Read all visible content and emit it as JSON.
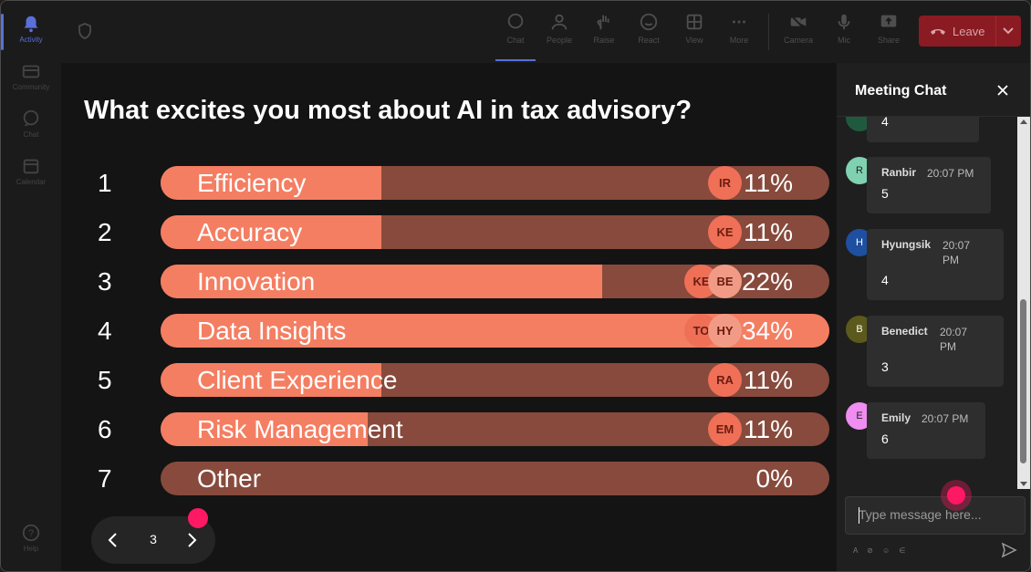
{
  "rail": {
    "items": [
      {
        "label": "Activity",
        "icon": "bell-icon",
        "active": true
      },
      {
        "label": "Community",
        "icon": "community-icon",
        "active": false
      },
      {
        "label": "Chat",
        "icon": "chat-icon",
        "active": false
      },
      {
        "label": "Calendar",
        "icon": "calendar-icon",
        "active": false
      }
    ],
    "help": "Help"
  },
  "toolbar": {
    "buttons": [
      {
        "label": "Chat",
        "icon": "chat-icon",
        "active": true
      },
      {
        "label": "People",
        "icon": "people-icon",
        "active": false
      },
      {
        "label": "Raise",
        "icon": "raise-hand-icon",
        "active": false
      },
      {
        "label": "React",
        "icon": "react-icon",
        "active": false
      },
      {
        "label": "View",
        "icon": "view-grid-icon",
        "active": false
      },
      {
        "label": "More",
        "icon": "more-icon",
        "active": false
      },
      {
        "label": "Camera",
        "icon": "camera-off-icon",
        "active": false
      },
      {
        "label": "Mic",
        "icon": "mic-icon",
        "active": false
      },
      {
        "label": "Share",
        "icon": "share-icon",
        "active": false
      }
    ],
    "leave_label": "Leave"
  },
  "poll": {
    "question": "What excites you most about AI in tax advisory?",
    "options": [
      {
        "rank": "1",
        "label": "Efficiency",
        "percent": "11%",
        "fill": 0.33,
        "avatars": [
          "IR"
        ]
      },
      {
        "rank": "2",
        "label": "Accuracy",
        "percent": "11%",
        "fill": 0.33,
        "avatars": [
          "KE"
        ]
      },
      {
        "rank": "3",
        "label": "Innovation",
        "percent": "22%",
        "fill": 0.66,
        "avatars": [
          "KE",
          "BE"
        ]
      },
      {
        "rank": "4",
        "label": "Data Insights",
        "percent": "34%",
        "fill": 1.0,
        "avatars": [
          "TO",
          "HY"
        ]
      },
      {
        "rank": "5",
        "label": "Client Experience",
        "percent": "11%",
        "fill": 0.33,
        "avatars": [
          "RA"
        ]
      },
      {
        "rank": "6",
        "label": "Risk Management",
        "percent": "11%",
        "fill": 0.31,
        "avatars": [
          "EM"
        ]
      },
      {
        "rank": "7",
        "label": "Other",
        "percent": "0%",
        "fill": 0,
        "avatars": []
      }
    ],
    "page": "3"
  },
  "chat": {
    "title": "Meeting Chat",
    "messages": [
      {
        "initial": "",
        "name": "",
        "time": "",
        "text": "4",
        "color": "#1f5a3e"
      },
      {
        "initial": "R",
        "name": "Ranbir",
        "time": "20:07 PM",
        "text": "5",
        "color": "#7fd1b0"
      },
      {
        "initial": "H",
        "name": "Hyungsik",
        "time": "20:07 PM",
        "text": "4",
        "color": "#1e4fa0"
      },
      {
        "initial": "B",
        "name": "Benedict",
        "time": "20:07 PM",
        "text": "3",
        "color": "#5b5a1c"
      },
      {
        "initial": "E",
        "name": "Emily",
        "time": "20:07 PM",
        "text": "6",
        "color": "#f08df0"
      }
    ],
    "input_placeholder": "Type message here...",
    "tools": "A ⊘ ☺ ∈"
  },
  "colors": {
    "bar_fill": "#f47e62",
    "bar_track": "#874a3c",
    "leave": "#8a1b22",
    "accent": "#5a6fd8",
    "pointer": "#ff1864"
  }
}
